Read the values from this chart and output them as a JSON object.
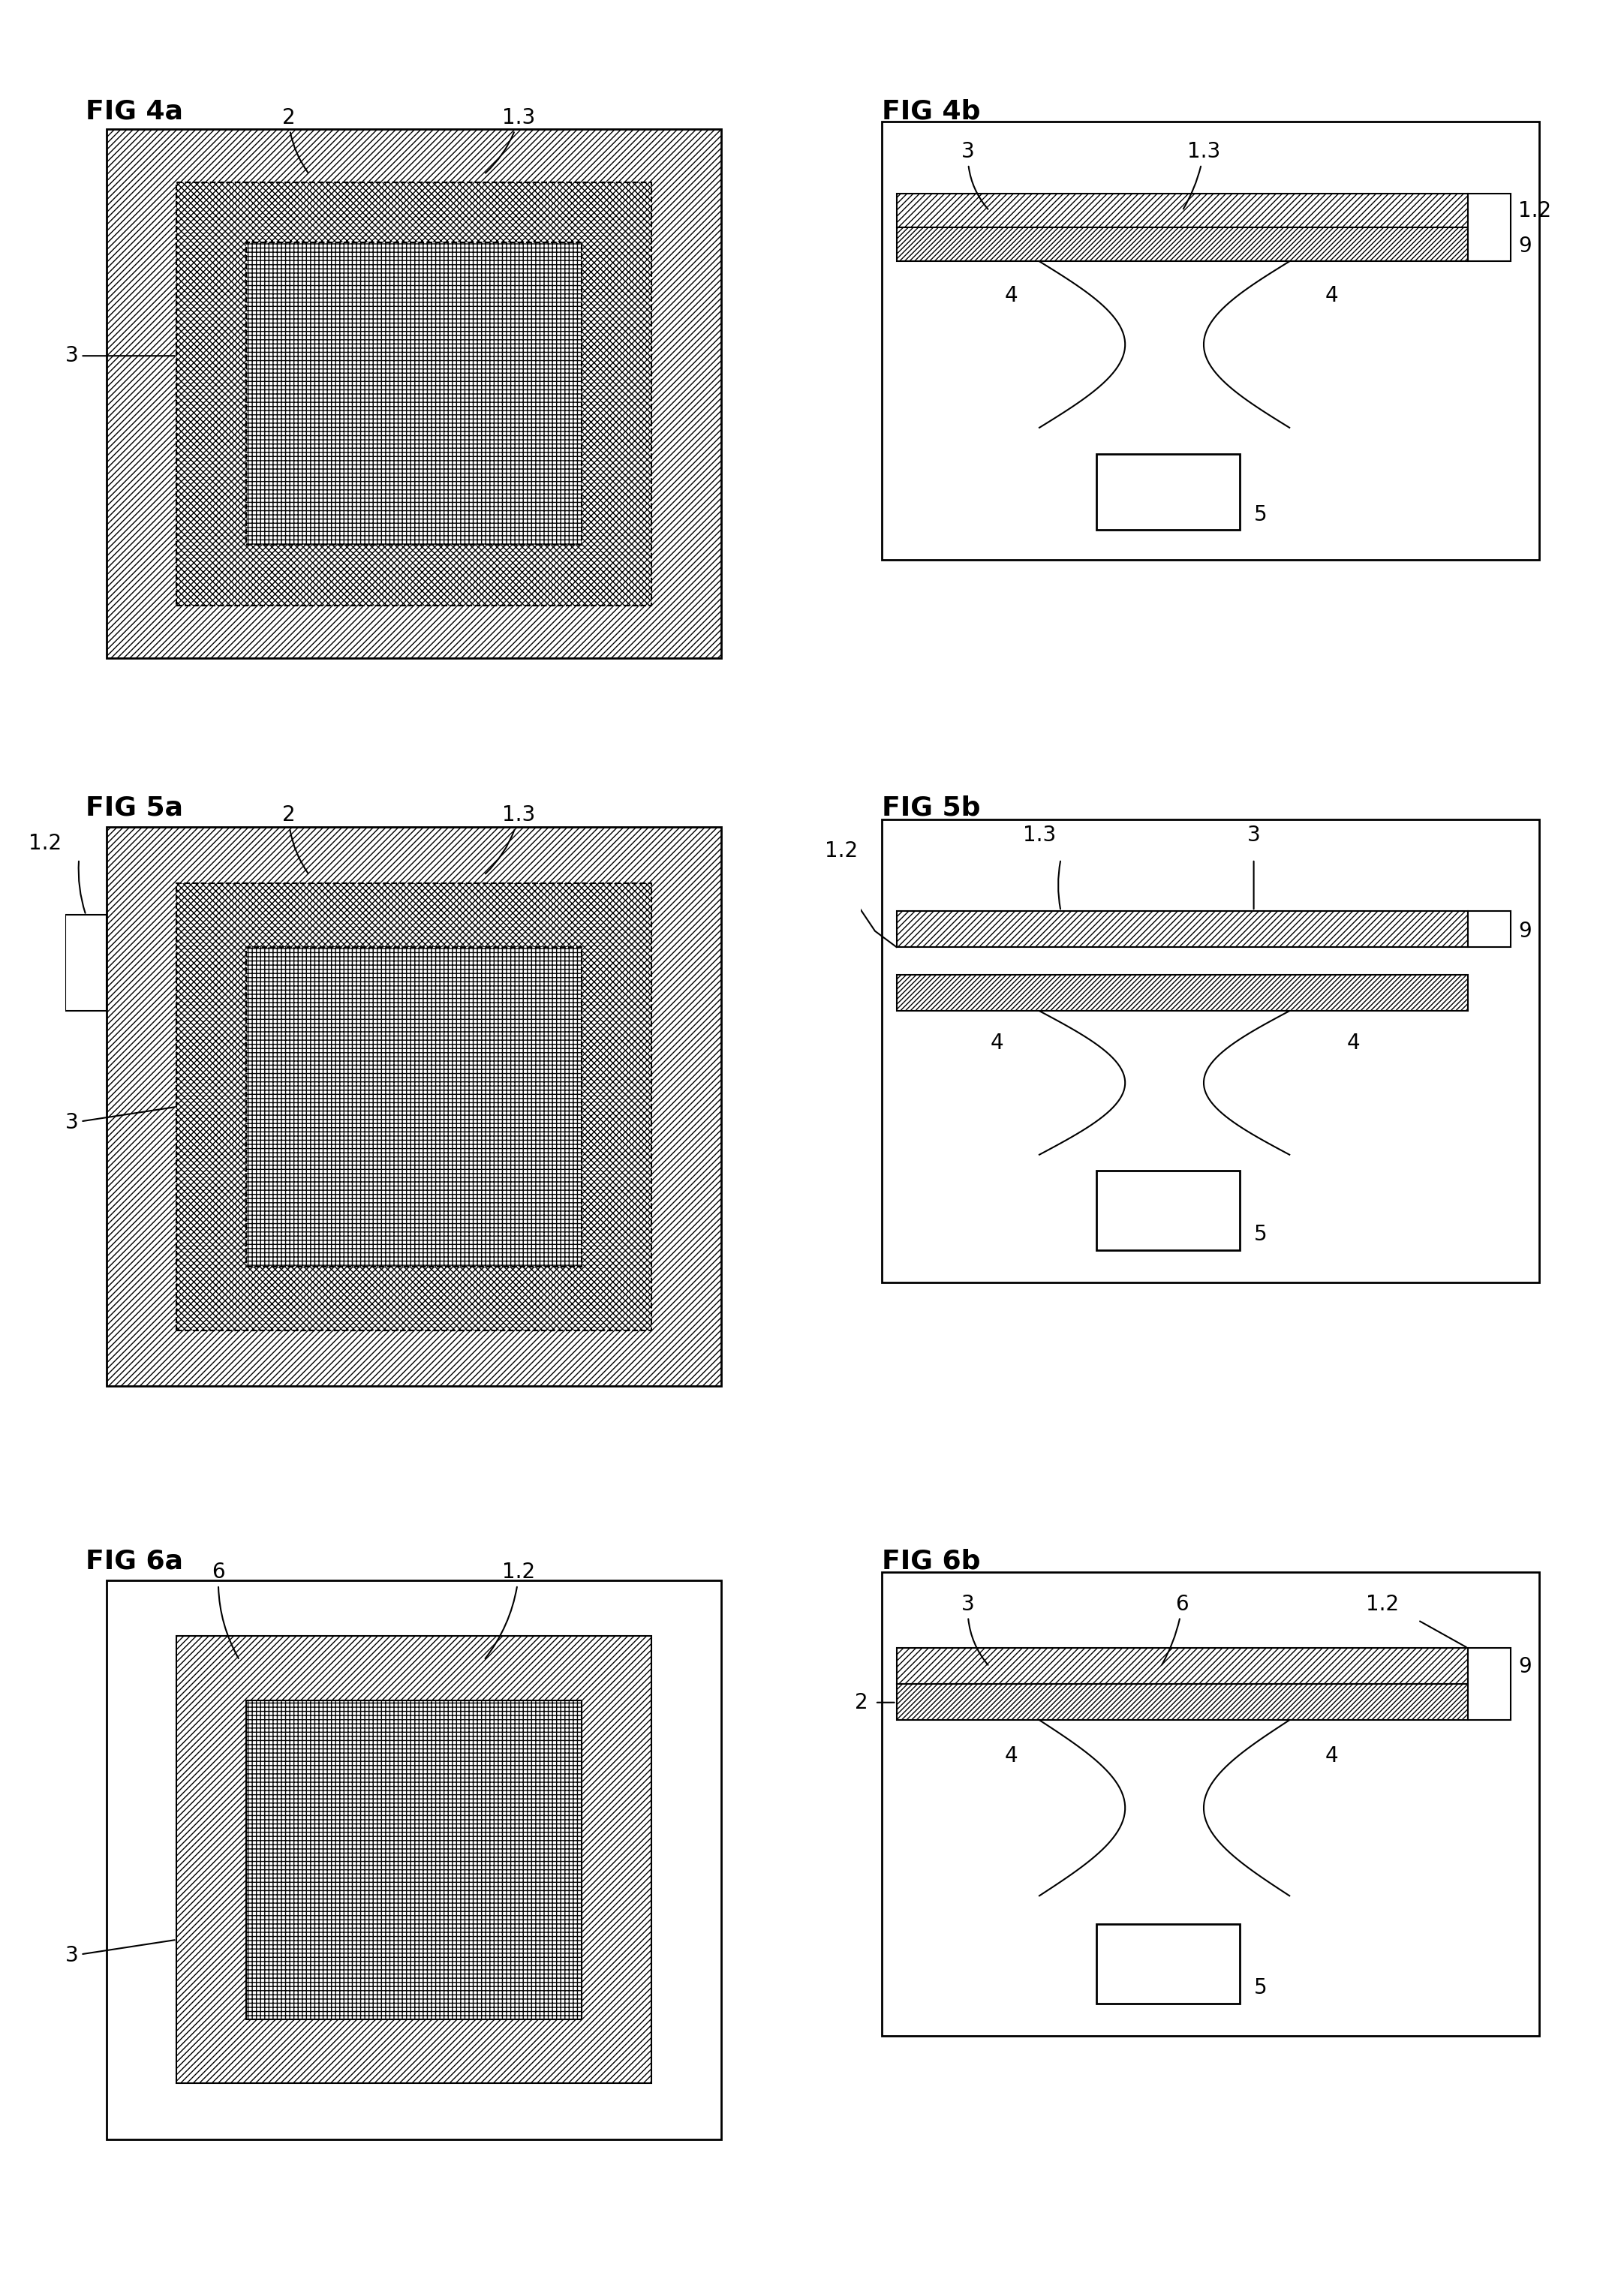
{
  "bg_color": "#ffffff",
  "line_color": "#000000",
  "fig_title_fontsize": 26,
  "label_fontsize": 20,
  "figures": [
    {
      "title": "FIG 4a"
    },
    {
      "title": "FIG 4b"
    },
    {
      "title": "FIG 5a"
    },
    {
      "title": "FIG 5b"
    },
    {
      "title": "FIG 6a"
    },
    {
      "title": "FIG 6b"
    }
  ]
}
